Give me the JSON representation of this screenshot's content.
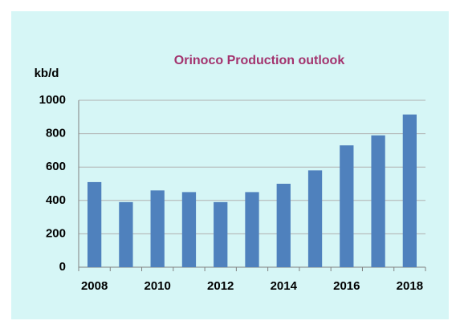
{
  "chart_data": {
    "type": "bar",
    "title": "Orinoco Production  outlook",
    "y_label": "kb/d",
    "categories": [
      "2008",
      null,
      "2010",
      null,
      "2012",
      null,
      "2014",
      null,
      "2016",
      null,
      "2018"
    ],
    "values": [
      510,
      390,
      460,
      450,
      390,
      450,
      500,
      580,
      730,
      790,
      915
    ],
    "color": "#4f81bd",
    "ylim": [
      0,
      1000
    ],
    "yticks": [
      0,
      200,
      400,
      600,
      800,
      1000
    ],
    "grid": true
  }
}
